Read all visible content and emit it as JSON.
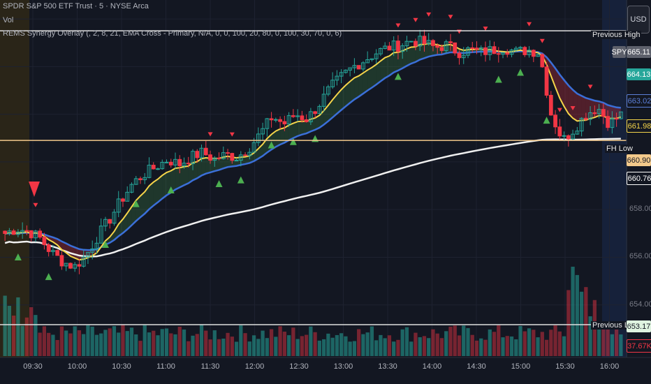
{
  "legend": {
    "symbol_line": "SPDR S&P 500 ETF Trust · 5 · NYSE Arca",
    "vol_line": "Vol",
    "indicator_line": "REMS Synergy Overlay (, 2, 8, 21, EMA Cross - Primary, N/A, 0, 0, 100, 20, 80, 0, 100, 30, 70, 0, 6)"
  },
  "currency_button": "USD",
  "price_labels": [
    {
      "text": "665.11",
      "bg": "#5d606b",
      "fg": "#ffffff"
    },
    {
      "text": "664.13",
      "bg": "#26a69a",
      "fg": "#ffffff"
    },
    {
      "text": "663.02",
      "bg": "#131722",
      "fg": "#5b7fd8"
    },
    {
      "text": "661.98",
      "bg": "#131722",
      "fg": "#f5d54a"
    },
    {
      "text": "660.90",
      "bg": "#f3c98b",
      "fg": "#131722"
    },
    {
      "text": "660.76",
      "bg": "#131722",
      "fg": "#ffffff"
    },
    {
      "text": "653.17",
      "bg": "#dff3e0",
      "fg": "#131722"
    },
    {
      "text": "37.67K",
      "bg": "#131722",
      "fg": "#f23645"
    }
  ],
  "symbol_tag": "SPY",
  "level_labels": {
    "previous_high": "Previous High",
    "previous_low": "Previous Low",
    "fh_low": "FH Low"
  },
  "colors": {
    "up": "#26a69a",
    "down": "#f23645",
    "ema_fast": "#f5d54a",
    "ema_slow": "#3b6fd8",
    "vwap": "#f0f0f0",
    "buy_signal": "#4caf50",
    "sell_signal": "#f23645",
    "background": "#131722"
  },
  "chart_data": {
    "type": "candlestick",
    "y_axis_ticks": [
      658.0,
      656.0,
      654.0
    ],
    "ylim": [
      652.0,
      666.5
    ],
    "x_axis_ticks": [
      "09:30",
      "10:00",
      "10:30",
      "11:00",
      "11:30",
      "12:00",
      "12:30",
      "13:00",
      "13:30",
      "14:00",
      "14:30",
      "15:00",
      "15:30",
      "16:00"
    ],
    "levels": {
      "previous_high": 665.5,
      "previous_low": 653.17,
      "fh_low": 660.9
    },
    "close_path": [
      657.0,
      657.2,
      657.1,
      656.8,
      656.2,
      655.8,
      655.6,
      656.1,
      656.9,
      657.6,
      658.4,
      659.1,
      659.5,
      659.8,
      660.1,
      659.9,
      660.2,
      660.4,
      660.1,
      660.3,
      660.2,
      660.6,
      661.2,
      661.9,
      661.6,
      662.0,
      661.8,
      662.4,
      663.1,
      663.6,
      664.0,
      664.3,
      664.6,
      664.8,
      664.9,
      665.1,
      665.0,
      664.8,
      664.9,
      664.6,
      664.7,
      664.6,
      664.7,
      664.8,
      664.6,
      664.7,
      664.6,
      662.0,
      660.9,
      661.4,
      662.0,
      662.3,
      661.6,
      661.98
    ],
    "markers_buy": [
      0.02,
      0.07,
      0.16,
      0.21,
      0.27,
      0.35,
      0.38,
      0.43,
      0.47,
      0.5,
      0.64,
      0.8,
      0.84,
      0.88
    ],
    "markers_sell": [
      0.05,
      0.33,
      0.37,
      0.64,
      0.67,
      0.69,
      0.72,
      0.74,
      0.78,
      0.85,
      0.87,
      0.9,
      0.92,
      0.95
    ]
  }
}
